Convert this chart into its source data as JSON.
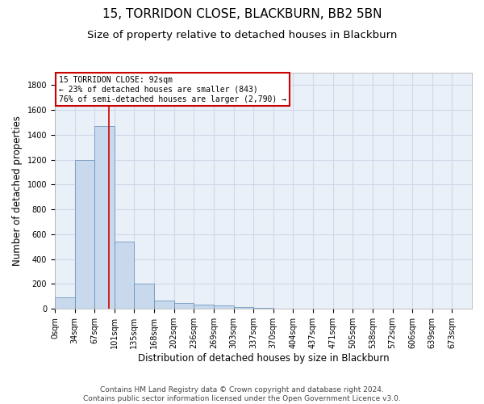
{
  "title1": "15, TORRIDON CLOSE, BLACKBURN, BB2 5BN",
  "title2": "Size of property relative to detached houses in Blackburn",
  "xlabel": "Distribution of detached houses by size in Blackburn",
  "ylabel": "Number of detached properties",
  "bar_values": [
    90,
    1200,
    1470,
    540,
    205,
    65,
    45,
    35,
    28,
    15,
    10,
    0,
    0,
    0,
    0,
    0,
    0,
    0,
    0,
    0,
    0
  ],
  "bar_labels": [
    "0sqm",
    "34sqm",
    "67sqm",
    "101sqm",
    "135sqm",
    "168sqm",
    "202sqm",
    "236sqm",
    "269sqm",
    "303sqm",
    "337sqm",
    "370sqm",
    "404sqm",
    "437sqm",
    "471sqm",
    "505sqm",
    "538sqm",
    "572sqm",
    "606sqm",
    "639sqm",
    "673sqm"
  ],
  "bar_color": "#c9d9ed",
  "bar_edge_color": "#5a8ab5",
  "bar_width": 1.0,
  "vline_x": 2.72,
  "vline_color": "#cc0000",
  "annotation_text": "15 TORRIDON CLOSE: 92sqm\n← 23% of detached houses are smaller (843)\n76% of semi-detached houses are larger (2,790) →",
  "annotation_box_color": "#ffffff",
  "annotation_edge_color": "#cc0000",
  "ylim": [
    0,
    1900
  ],
  "yticks": [
    0,
    200,
    400,
    600,
    800,
    1000,
    1200,
    1400,
    1600,
    1800
  ],
  "grid_color": "#d0d8e8",
  "bg_color": "#eaf0f8",
  "footer_text": "Contains HM Land Registry data © Crown copyright and database right 2024.\nContains public sector information licensed under the Open Government Licence v3.0.",
  "title1_fontsize": 11,
  "title2_fontsize": 9.5,
  "xlabel_fontsize": 8.5,
  "ylabel_fontsize": 8.5,
  "footer_fontsize": 6.5,
  "tick_fontsize": 7
}
